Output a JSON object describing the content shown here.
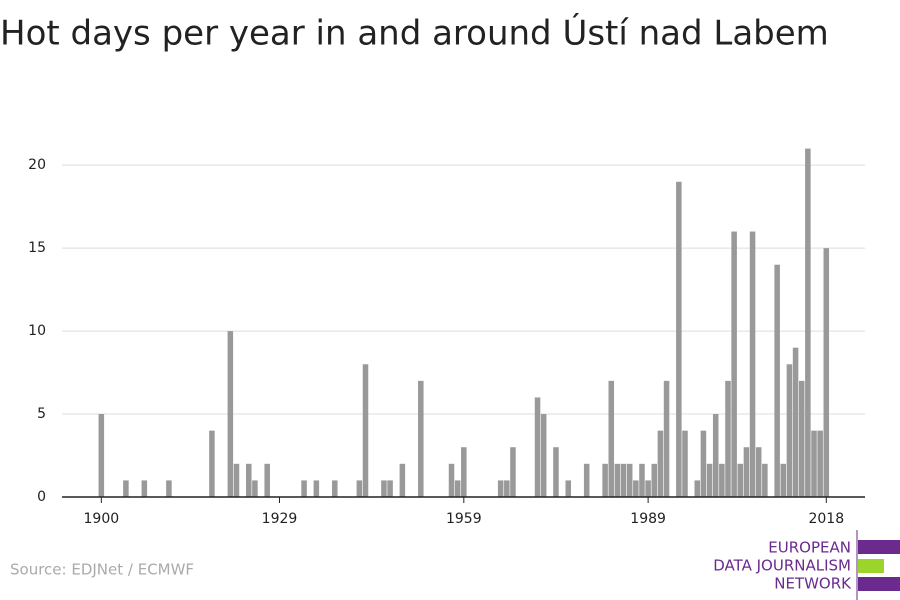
{
  "chart_data": {
    "type": "bar",
    "title": "Hot days per year in and around Ústí nad Labem",
    "source": "Source: EDJNet / ECMWF",
    "logo": [
      "EUROPEAN",
      "DATA JOURNALISM",
      "NETWORK"
    ],
    "x": [
      1900,
      1901,
      1902,
      1903,
      1904,
      1905,
      1906,
      1907,
      1908,
      1909,
      1910,
      1911,
      1912,
      1913,
      1914,
      1915,
      1916,
      1917,
      1918,
      1919,
      1920,
      1921,
      1922,
      1923,
      1924,
      1925,
      1926,
      1927,
      1928,
      1929,
      1930,
      1931,
      1932,
      1933,
      1934,
      1935,
      1936,
      1937,
      1938,
      1939,
      1940,
      1941,
      1942,
      1943,
      1944,
      1945,
      1946,
      1947,
      1948,
      1949,
      1950,
      1951,
      1952,
      1953,
      1954,
      1955,
      1956,
      1957,
      1958,
      1959,
      1960,
      1961,
      1962,
      1963,
      1964,
      1965,
      1966,
      1967,
      1968,
      1969,
      1970,
      1971,
      1972,
      1973,
      1974,
      1975,
      1976,
      1977,
      1978,
      1979,
      1980,
      1981,
      1982,
      1983,
      1984,
      1985,
      1986,
      1987,
      1988,
      1989,
      1990,
      1991,
      1992,
      1993,
      1994,
      1995,
      1996,
      1997,
      1998,
      1999,
      2000,
      2001,
      2002,
      2003,
      2004,
      2005,
      2006,
      2007,
      2008,
      2009,
      2010,
      2011,
      2012,
      2013,
      2014,
      2015,
      2016,
      2017,
      2018
    ],
    "values": [
      5,
      0,
      0,
      0,
      1,
      0,
      0,
      1,
      0,
      0,
      0,
      1,
      0,
      0,
      0,
      0,
      0,
      0,
      4,
      0,
      0,
      10,
      2,
      0,
      2,
      1,
      0,
      2,
      0,
      0,
      0,
      0,
      0,
      1,
      0,
      1,
      0,
      0,
      1,
      0,
      0,
      0,
      1,
      8,
      0,
      0,
      1,
      1,
      0,
      2,
      0,
      0,
      7,
      0,
      0,
      0,
      0,
      2,
      1,
      3,
      0,
      0,
      0,
      0,
      0,
      1,
      1,
      3,
      0,
      0,
      0,
      6,
      5,
      0,
      3,
      0,
      1,
      0,
      0,
      2,
      0,
      0,
      2,
      7,
      2,
      2,
      2,
      1,
      2,
      1,
      2,
      4,
      7,
      0,
      19,
      4,
      0,
      1,
      4,
      2,
      5,
      2,
      7,
      16,
      2,
      3,
      16,
      3,
      2,
      0,
      14,
      2,
      8,
      9,
      7,
      21,
      4,
      4,
      15
    ],
    "color": "#999999",
    "xlim": [
      1893.6,
      2024.3
    ],
    "xticks": [
      1900,
      1929,
      1959,
      1989,
      2018
    ],
    "ylim": [
      0,
      22
    ],
    "yticks": [
      0,
      5,
      10,
      15,
      20
    ],
    "grid": true
  }
}
